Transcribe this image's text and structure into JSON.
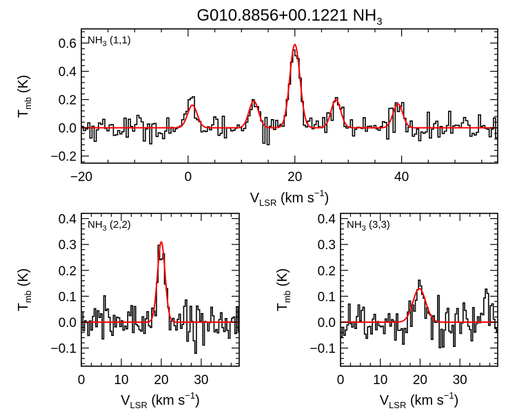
{
  "title": {
    "main": "G010.8856+00.1221 NH",
    "sub": "3"
  },
  "chart_data": [
    {
      "id": "top",
      "type": "line",
      "label": {
        "main": "NH",
        "sub": "3",
        "rest": " (1,1)"
      },
      "xlabel": {
        "main": "V",
        "sub": "LSR",
        "rest": " (km s",
        "sup": "−1",
        "end": ")"
      },
      "ylabel": {
        "main": "T",
        "sub": "mb",
        "rest": " (K)"
      },
      "xlim": [
        -20,
        58
      ],
      "ylim": [
        -0.25,
        0.7
      ],
      "xticks": [
        -20,
        0,
        20,
        40
      ],
      "xticklabels": [
        "−20",
        "0",
        "20",
        "40"
      ],
      "yticks": [
        -0.2,
        0.0,
        0.2,
        0.4,
        0.6
      ],
      "yticklabels": [
        "−0.2",
        "0.0",
        "0.2",
        "0.4",
        "0.6"
      ],
      "channel_width": 0.4,
      "noise_rms": 0.045,
      "series": [
        {
          "name": "spectrum",
          "color": "#000000",
          "style": "histogram"
        },
        {
          "name": "fit",
          "color": "#ff0000",
          "style": "line",
          "components": [
            {
              "center": 0.8,
              "amplitude": 0.16,
              "sigma": 0.9
            },
            {
              "center": 12.3,
              "amplitude": 0.19,
              "sigma": 0.9
            },
            {
              "center": 20.0,
              "amplitude": 0.59,
              "sigma": 0.95
            },
            {
              "center": 27.7,
              "amplitude": 0.2,
              "sigma": 0.9
            },
            {
              "center": 39.3,
              "amplitude": 0.17,
              "sigma": 0.9
            }
          ]
        }
      ]
    },
    {
      "id": "bottom-left",
      "type": "line",
      "label": {
        "main": "NH",
        "sub": "3",
        "rest": " (2,2)"
      },
      "xlabel": {
        "main": "V",
        "sub": "LSR",
        "rest": " (km s",
        "sup": "−1",
        "end": ")"
      },
      "ylabel": {
        "main": "T",
        "sub": "mb",
        "rest": " (K)"
      },
      "xlim": [
        0,
        39.5
      ],
      "ylim": [
        -0.17,
        0.42
      ],
      "xticks": [
        0,
        10,
        20,
        30
      ],
      "xticklabels": [
        "0",
        "10",
        "20",
        "30"
      ],
      "yticks": [
        -0.1,
        0.0,
        0.1,
        0.2,
        0.3,
        0.4
      ],
      "yticklabels": [
        "−0.1",
        "0.0",
        "0.1",
        "0.2",
        "0.3",
        "0.4"
      ],
      "channel_width": 0.4,
      "noise_rms": 0.04,
      "series": [
        {
          "name": "spectrum",
          "color": "#000000",
          "style": "histogram"
        },
        {
          "name": "fit",
          "color": "#ff0000",
          "style": "line",
          "components": [
            {
              "center": 20.0,
              "amplitude": 0.31,
              "sigma": 0.95
            }
          ]
        }
      ]
    },
    {
      "id": "bottom-right",
      "type": "line",
      "label": {
        "main": "NH",
        "sub": "3",
        "rest": " (3,3)"
      },
      "xlabel": {
        "main": "V",
        "sub": "LSR",
        "rest": " (km s",
        "sup": "−1",
        "end": ")"
      },
      "ylabel": {
        "main": "T",
        "sub": "mb",
        "rest": " (K)"
      },
      "xlim": [
        0,
        39.5
      ],
      "ylim": [
        -0.17,
        0.42
      ],
      "xticks": [
        0,
        10,
        20,
        30
      ],
      "xticklabels": [
        "0",
        "10",
        "20",
        "30"
      ],
      "yticks": [
        -0.1,
        0.0,
        0.1,
        0.2,
        0.3,
        0.4
      ],
      "yticklabels": [
        "−0.1",
        "0.0",
        "0.1",
        "0.2",
        "0.3",
        "0.4"
      ],
      "channel_width": 0.4,
      "noise_rms": 0.05,
      "series": [
        {
          "name": "spectrum",
          "color": "#000000",
          "style": "histogram"
        },
        {
          "name": "fit",
          "color": "#ff0000",
          "style": "line",
          "components": [
            {
              "center": 19.8,
              "amplitude": 0.13,
              "sigma": 1.6
            }
          ]
        }
      ]
    }
  ]
}
